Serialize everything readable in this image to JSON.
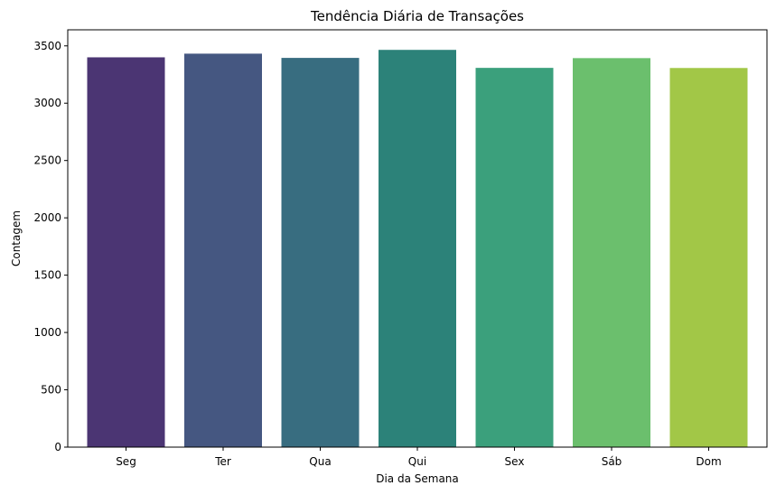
{
  "chart_data": {
    "type": "bar",
    "title": "Tendência Diária de Transações",
    "xlabel": "Dia da Semana",
    "ylabel": "Contagem",
    "categories": [
      "Seg",
      "Ter",
      "Qua",
      "Qui",
      "Sex",
      "Sáb",
      "Dom"
    ],
    "values": [
      3400,
      3432,
      3395,
      3465,
      3308,
      3393,
      3307
    ],
    "colors": [
      "#4b3573",
      "#455781",
      "#386d80",
      "#2c8279",
      "#3ba07c",
      "#6bbf6d",
      "#a2c747"
    ],
    "ylim": [
      0,
      3640
    ],
    "yticks": [
      0,
      500,
      1000,
      1500,
      2000,
      2500,
      3000,
      3500
    ],
    "grid": false,
    "legend": "none"
  }
}
